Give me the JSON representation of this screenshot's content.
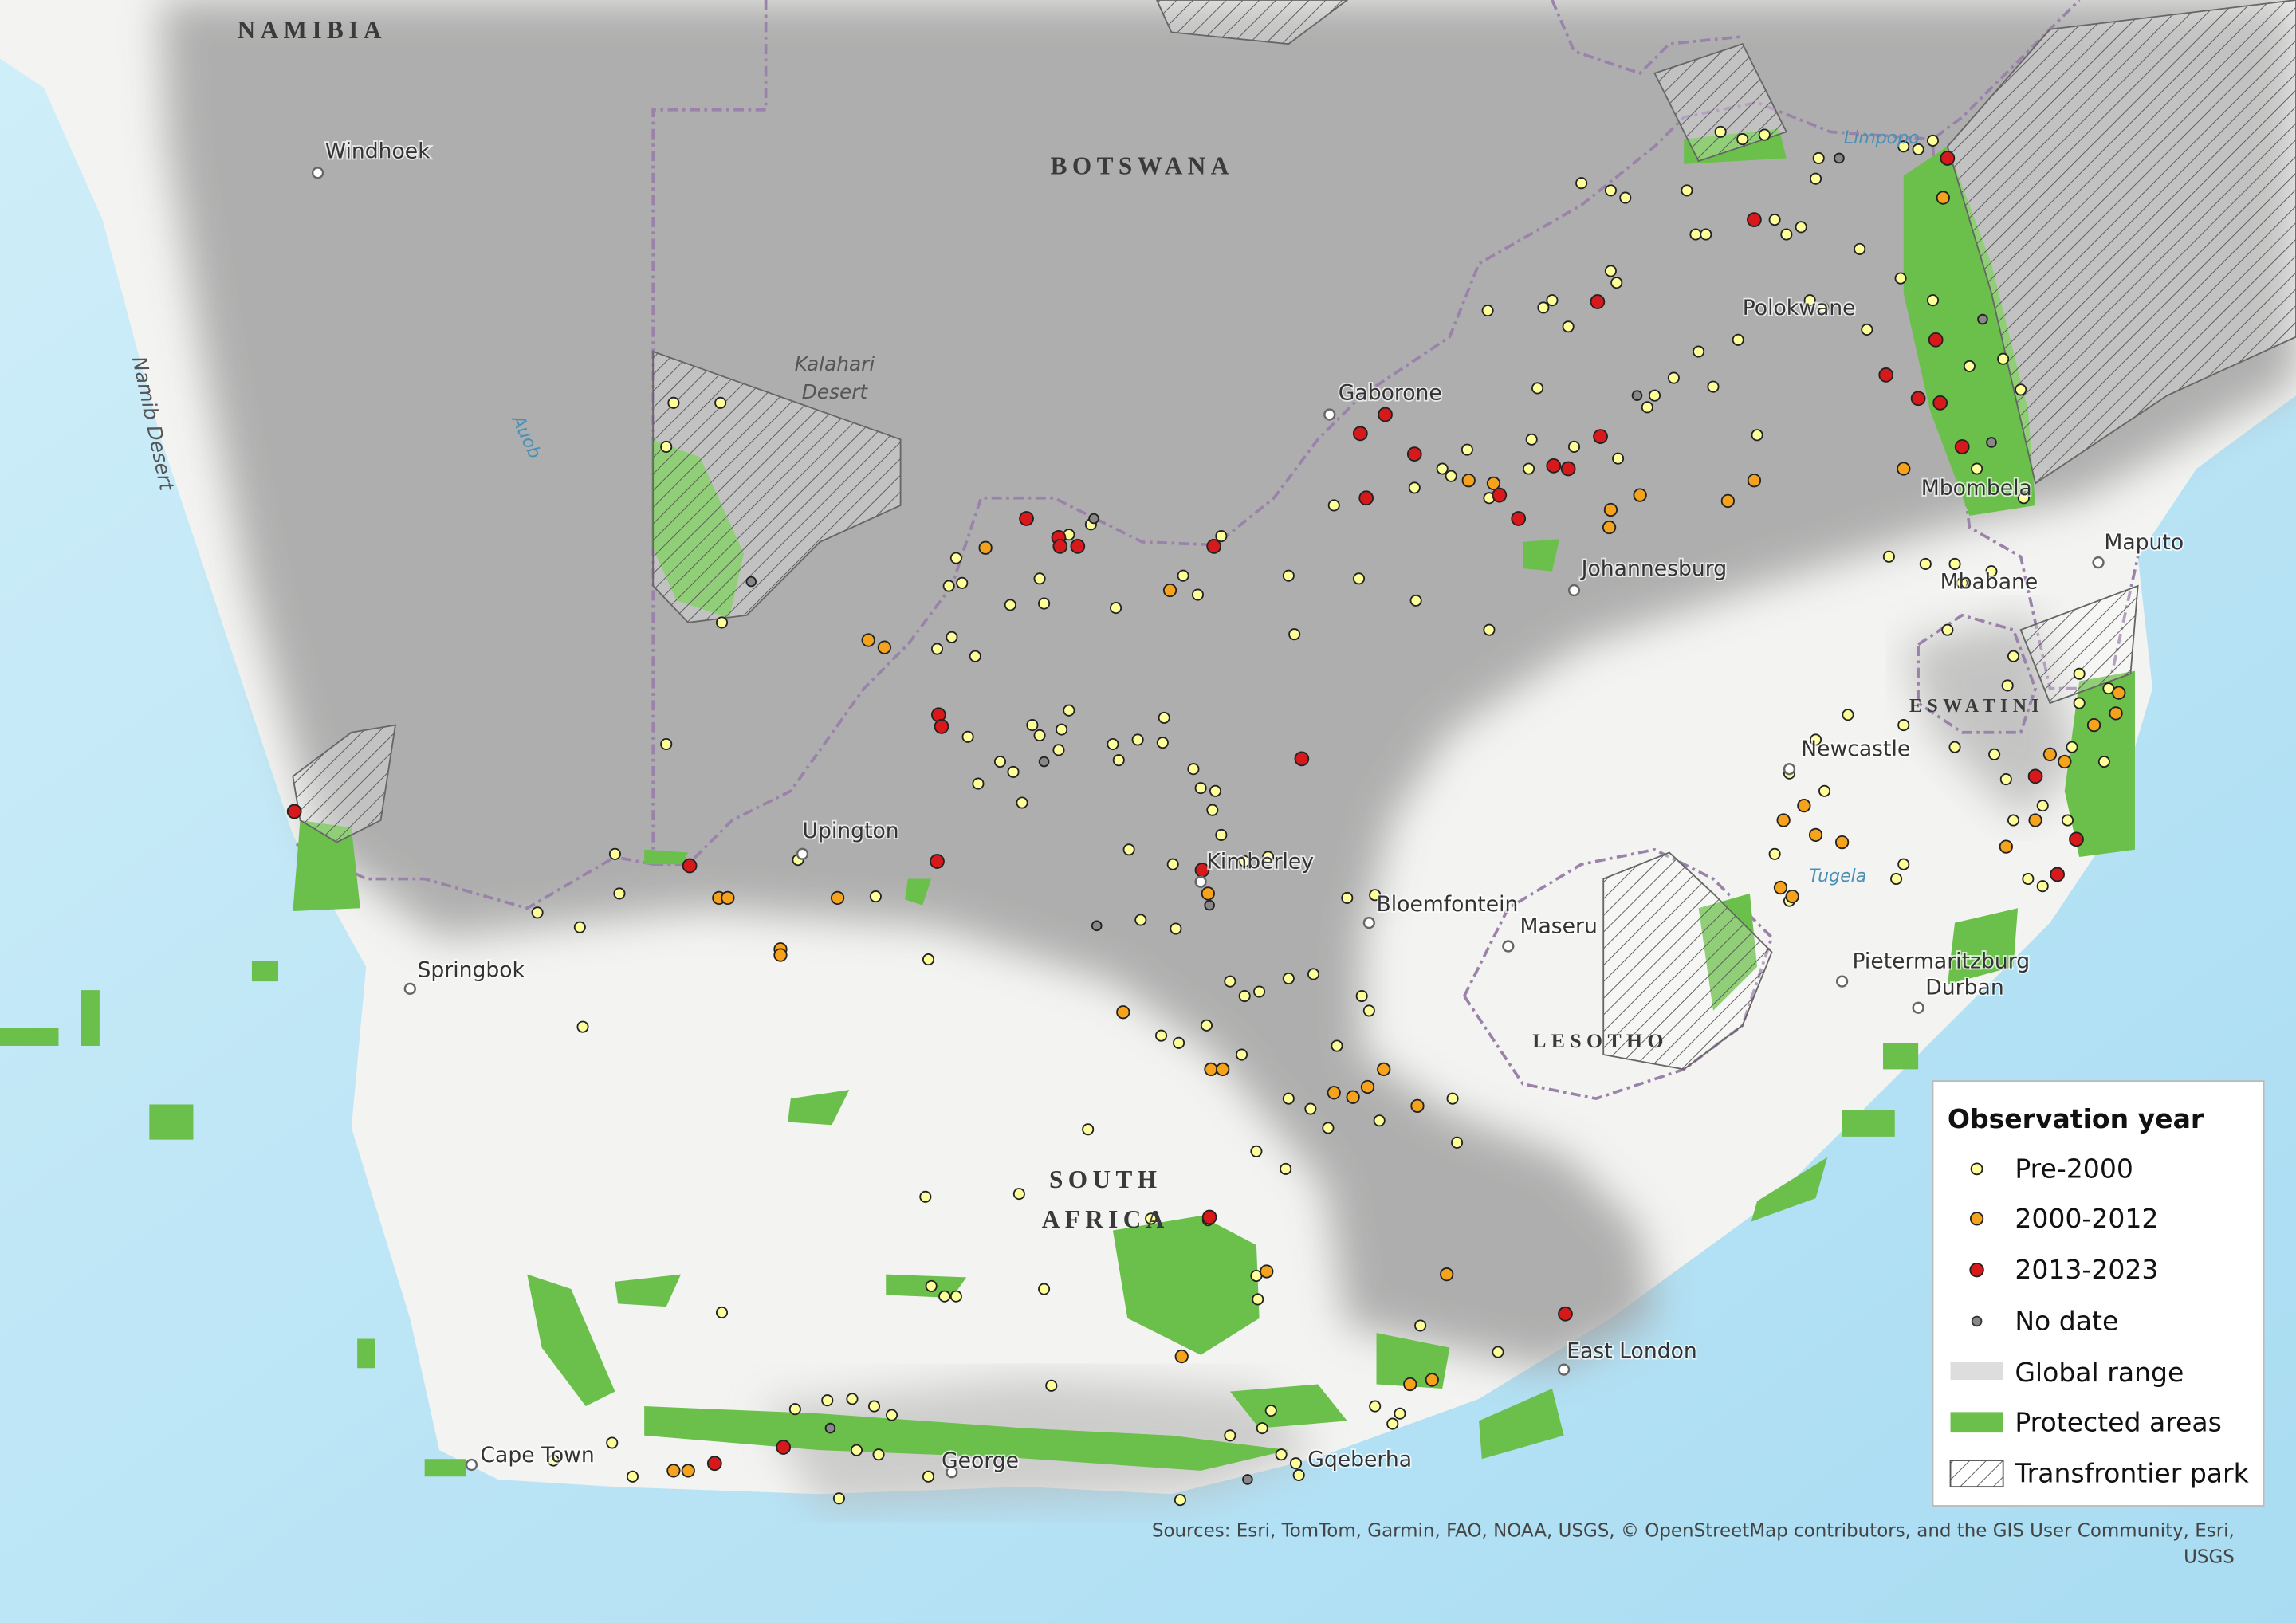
{
  "map": {
    "countries": [
      "NAMIBIA",
      "BOTSWANA",
      "SOUTH AFRICA",
      "LESOTHO",
      "ESWATINI"
    ],
    "cities": [
      "Windhoek",
      "Gaborone",
      "Polokwane",
      "Mbombela",
      "Johannesburg",
      "Maputo",
      "Mbabane",
      "Newcastle",
      "Upington",
      "Kimberley",
      "Bloemfontein",
      "Maseru",
      "Springbok",
      "Pietermaritzburg",
      "Durban",
      "East London",
      "Cape Town",
      "George",
      "Gqeberha"
    ],
    "features": [
      "Kalahari Desert",
      "Namib Desert",
      "Auob",
      "Limpopo",
      "Tugela"
    ]
  },
  "legend": {
    "title": "Observation year",
    "items": [
      "Pre-2000",
      "2000-2012",
      "2013-2023",
      "No date",
      "Global range",
      "Protected areas",
      "Transfrontier park"
    ]
  },
  "sources": "Sources: Esri, TomTom, Garmin, FAO, NOAA, USGS, © OpenStreetMap contributors, and the GIS User Community, Esri, USGS"
}
